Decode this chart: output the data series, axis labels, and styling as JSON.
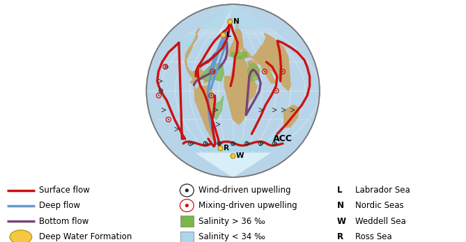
{
  "bg_color": "#ffffff",
  "ocean_color": "#b8d4e8",
  "ocean_color2": "#c5dded",
  "continent_color": "#c8a96e",
  "greenland_color": "#e8e8f0",
  "antarctica_color": "#d8eef8",
  "salinity_high_color": "#7ab648",
  "salinity_low_color": "#a8d8ea",
  "surface_flow_color": "#cc1111",
  "deep_flow_color": "#6699cc",
  "bottom_flow_color": "#774477",
  "dw_formation_color": "#f5c842",
  "grid_color": "#ffffff",
  "arrow_color": "#222222",
  "legend_fontsize": 8.5,
  "legend_items_col1": [
    {
      "label": "Surface flow",
      "color": "#cc1111",
      "type": "line",
      "lw": 2.5
    },
    {
      "label": "Deep flow",
      "color": "#6699cc",
      "type": "line",
      "lw": 2.5
    },
    {
      "label": "Bottom flow",
      "color": "#774477",
      "type": "line",
      "lw": 2.5
    },
    {
      "label": "Deep Water Formation",
      "color": "#f5c842",
      "type": "circle"
    }
  ],
  "legend_items_col2": [
    {
      "label": "Wind-driven upwelling",
      "color": "#222222",
      "type": "bullseye_black"
    },
    {
      "label": "Mixing-driven upwelling",
      "color": "#cc1111",
      "type": "bullseye_red"
    },
    {
      "label": "Salinity > 36 ‰",
      "color": "#7ab648",
      "type": "square"
    },
    {
      "label": "Salinity < 34 ‰",
      "color": "#a8d8ea",
      "type": "square"
    }
  ],
  "legend_items_col3": [
    {
      "label": "Labrador Sea",
      "key": "L"
    },
    {
      "label": "Nordic Seas",
      "key": "N"
    },
    {
      "label": "Weddell Sea",
      "key": "W"
    },
    {
      "label": "Ross Sea",
      "key": "R"
    }
  ]
}
